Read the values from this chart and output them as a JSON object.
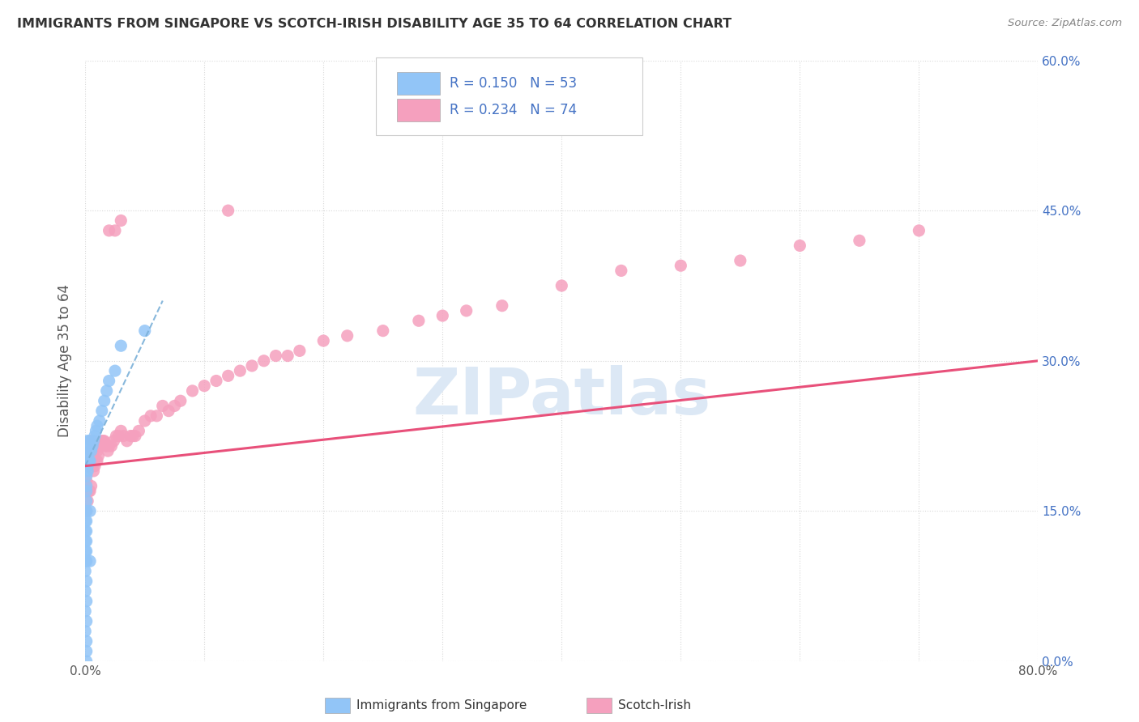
{
  "title": "IMMIGRANTS FROM SINGAPORE VS SCOTCH-IRISH DISABILITY AGE 35 TO 64 CORRELATION CHART",
  "source": "Source: ZipAtlas.com",
  "ylabel": "Disability Age 35 to 64",
  "xlim": [
    0.0,
    0.8
  ],
  "ylim": [
    0.0,
    0.6
  ],
  "xticks": [
    0.0,
    0.1,
    0.2,
    0.3,
    0.4,
    0.5,
    0.6,
    0.7,
    0.8
  ],
  "yticks": [
    0.0,
    0.15,
    0.3,
    0.45,
    0.6
  ],
  "color_singapore": "#92c5f7",
  "color_scotch_irish": "#f5a0be",
  "color_blue_text": "#4472c4",
  "trendline_singapore_color": "#7ab0d8",
  "trendline_scotch_irish_color": "#e8507a",
  "background_color": "#ffffff",
  "grid_color": "#d8d8d8",
  "watermark_color": "#dce8f5",
  "singapore_x": [
    0.0,
    0.0,
    0.0,
    0.0,
    0.0,
    0.0,
    0.0,
    0.0,
    0.0,
    0.0,
    0.001,
    0.001,
    0.001,
    0.001,
    0.001,
    0.001,
    0.001,
    0.001,
    0.001,
    0.001,
    0.001,
    0.001,
    0.001,
    0.001,
    0.001,
    0.001,
    0.002,
    0.002,
    0.002,
    0.002,
    0.002,
    0.002,
    0.002,
    0.003,
    0.003,
    0.003,
    0.004,
    0.004,
    0.004,
    0.005,
    0.006,
    0.007,
    0.008,
    0.009,
    0.01,
    0.012,
    0.014,
    0.016,
    0.018,
    0.02,
    0.025,
    0.03,
    0.05
  ],
  "singapore_y": [
    0.03,
    0.05,
    0.07,
    0.09,
    0.1,
    0.11,
    0.12,
    0.13,
    0.14,
    0.15,
    0.0,
    0.01,
    0.02,
    0.04,
    0.06,
    0.08,
    0.1,
    0.11,
    0.12,
    0.13,
    0.14,
    0.15,
    0.16,
    0.17,
    0.175,
    0.185,
    0.19,
    0.195,
    0.2,
    0.205,
    0.21,
    0.215,
    0.22,
    0.2,
    0.21,
    0.22,
    0.1,
    0.15,
    0.2,
    0.21,
    0.215,
    0.22,
    0.225,
    0.23,
    0.235,
    0.24,
    0.25,
    0.26,
    0.27,
    0.28,
    0.29,
    0.315,
    0.33
  ],
  "scotch_irish_x": [
    0.001,
    0.001,
    0.002,
    0.002,
    0.003,
    0.003,
    0.004,
    0.004,
    0.005,
    0.005,
    0.006,
    0.007,
    0.007,
    0.008,
    0.008,
    0.009,
    0.01,
    0.01,
    0.011,
    0.012,
    0.013,
    0.014,
    0.015,
    0.016,
    0.017,
    0.018,
    0.019,
    0.02,
    0.022,
    0.024,
    0.026,
    0.028,
    0.03,
    0.032,
    0.035,
    0.038,
    0.04,
    0.042,
    0.045,
    0.05,
    0.055,
    0.06,
    0.065,
    0.07,
    0.075,
    0.08,
    0.09,
    0.1,
    0.11,
    0.12,
    0.13,
    0.14,
    0.15,
    0.16,
    0.17,
    0.18,
    0.2,
    0.22,
    0.25,
    0.28,
    0.3,
    0.32,
    0.35,
    0.4,
    0.45,
    0.5,
    0.55,
    0.6,
    0.65,
    0.7,
    0.02,
    0.025,
    0.03,
    0.12
  ],
  "scotch_irish_y": [
    0.15,
    0.18,
    0.16,
    0.2,
    0.17,
    0.2,
    0.17,
    0.21,
    0.175,
    0.22,
    0.2,
    0.21,
    0.19,
    0.215,
    0.195,
    0.2,
    0.2,
    0.21,
    0.205,
    0.215,
    0.215,
    0.22,
    0.22,
    0.22,
    0.215,
    0.215,
    0.21,
    0.215,
    0.215,
    0.22,
    0.225,
    0.225,
    0.23,
    0.225,
    0.22,
    0.225,
    0.225,
    0.225,
    0.23,
    0.24,
    0.245,
    0.245,
    0.255,
    0.25,
    0.255,
    0.26,
    0.27,
    0.275,
    0.28,
    0.285,
    0.29,
    0.295,
    0.3,
    0.305,
    0.305,
    0.31,
    0.32,
    0.325,
    0.33,
    0.34,
    0.345,
    0.35,
    0.355,
    0.375,
    0.39,
    0.395,
    0.4,
    0.415,
    0.42,
    0.43,
    0.43,
    0.43,
    0.44,
    0.45
  ],
  "sg_trendline_x": [
    0.0,
    0.065
  ],
  "sg_trendline_y": [
    0.195,
    0.36
  ],
  "si_trendline_x": [
    0.0,
    0.8
  ],
  "si_trendline_y": [
    0.195,
    0.3
  ]
}
